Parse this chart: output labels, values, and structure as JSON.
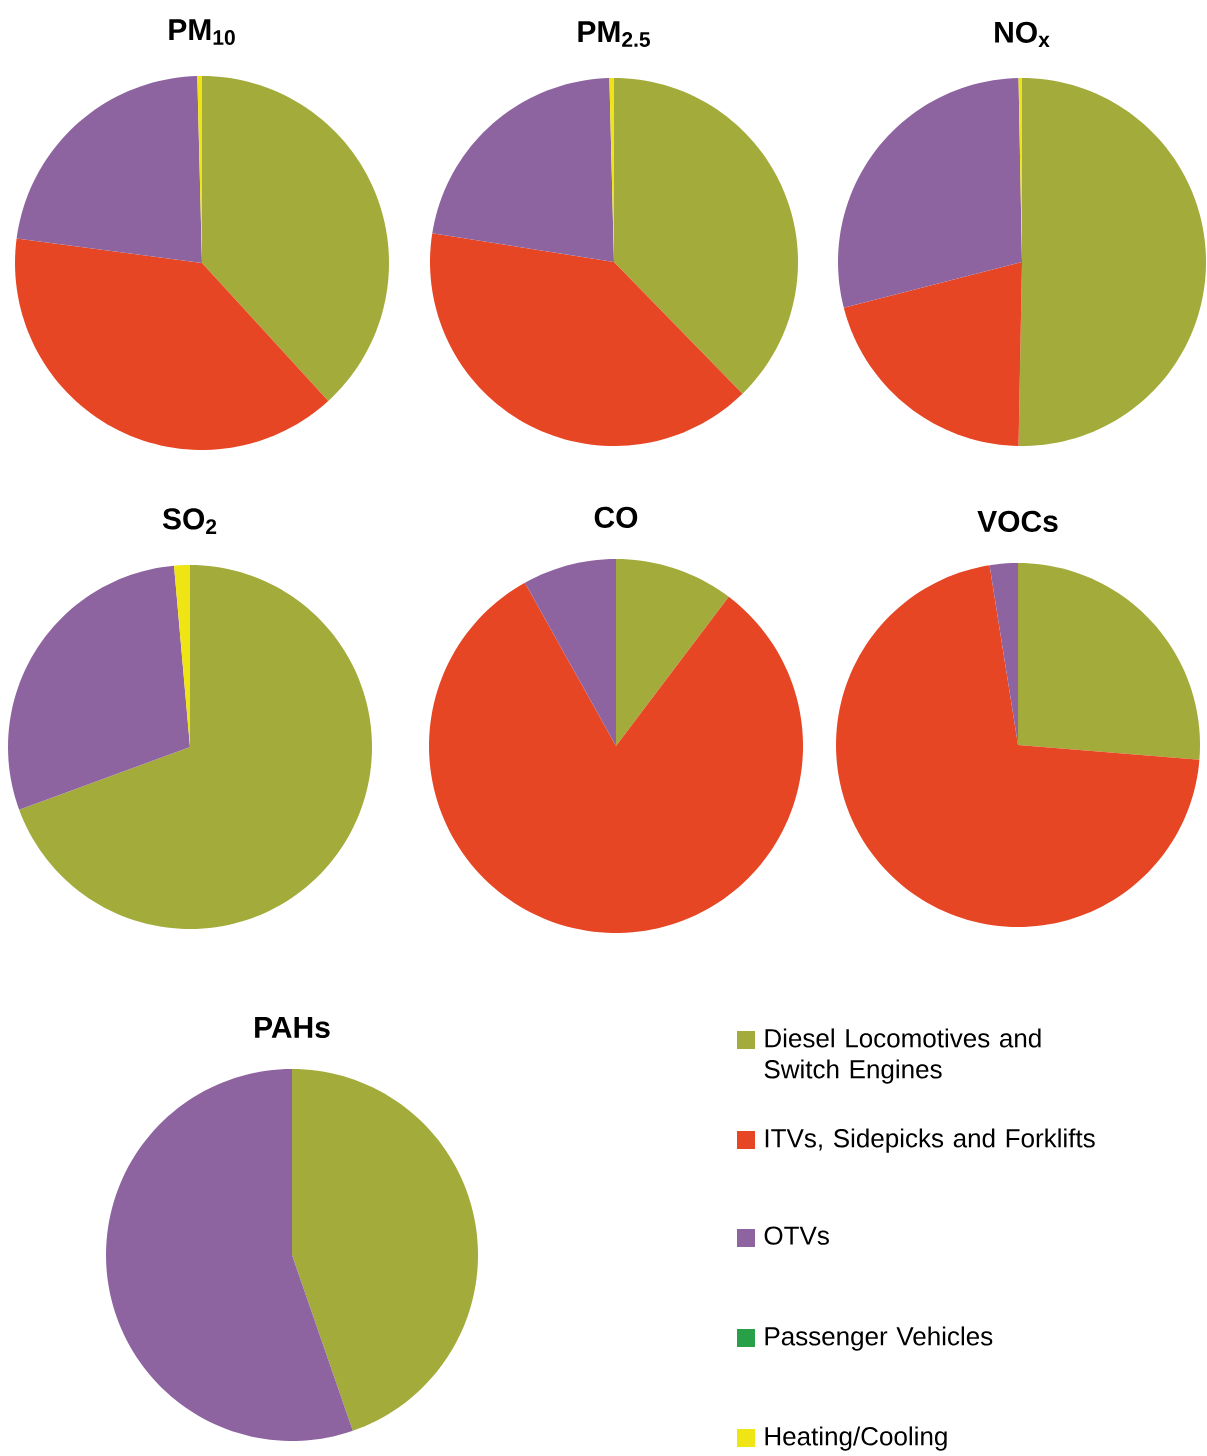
{
  "chart_data": [
    {
      "type": "pie",
      "title": "PM$_{10}$",
      "categories": [
        null,
        null,
        null,
        null,
        null
      ],
      "values": [
        38.2,
        38.9,
        22.5,
        0,
        0.4
      ],
      "colors": [
        "#a3ab3b",
        "#e74624",
        "#8e64a0",
        "#28a048",
        "#f0e514"
      ]
    },
    {
      "type": "pie",
      "title": "PM$_{2.5}$",
      "categories": [
        null,
        null,
        null,
        null,
        null
      ],
      "values": [
        37.7,
        39.8,
        22.1,
        0,
        0.4
      ],
      "colors": [
        "#a3ab3b",
        "#e74624",
        "#8e64a0",
        "#28a048",
        "#f0e514"
      ]
    },
    {
      "type": "pie",
      "title": "NO$_{x}$",
      "categories": [
        null,
        null,
        null,
        null,
        null
      ],
      "values": [
        50.3,
        20.7,
        28.7,
        0,
        0.3
      ],
      "colors": [
        "#a3ab3b",
        "#e74624",
        "#8e64a0",
        "#28a048",
        "#f0e514"
      ]
    },
    {
      "type": "pie",
      "title": "SO$_{2}$",
      "categories": [
        null,
        null,
        null,
        null,
        null
      ],
      "values": [
        69.4,
        0,
        29.2,
        0,
        1.4
      ],
      "colors": [
        "#a3ab3b",
        "#e74624",
        "#8e64a0",
        "#28a048",
        "#f0e514"
      ]
    },
    {
      "type": "pie",
      "title": "CO",
      "categories": [
        null,
        null,
        null,
        null,
        null
      ],
      "values": [
        10.3,
        81.6,
        8.1,
        0,
        0
      ],
      "colors": [
        "#a3ab3b",
        "#e74624",
        "#8e64a0",
        "#28a048",
        "#f0e514"
      ]
    },
    {
      "type": "pie",
      "title": "VOCs",
      "categories": [
        null,
        null,
        null,
        null,
        null
      ],
      "values": [
        26.3,
        71.2,
        2.5,
        0,
        0
      ],
      "colors": [
        "#a3ab3b",
        "#e74624",
        "#8e64a0",
        "#28a048",
        "#f0e514"
      ]
    },
    {
      "type": "pie",
      "title": "PAHs",
      "categories": [
        "Diesel Locomotives and Switch Engines",
        "ITVs, Sidepicks and Forklifts",
        "OTVs",
        "Passenger Vehicles",
        "Heating/Cooling"
      ],
      "values": [
        44.7,
        0,
        55.3,
        0,
        0
      ],
      "colors": [
        "#a3ab3b",
        "#e74624",
        "#8e64a0",
        "#28a048",
        "#f0e514"
      ],
      "legend": "right"
    }
  ]
}
